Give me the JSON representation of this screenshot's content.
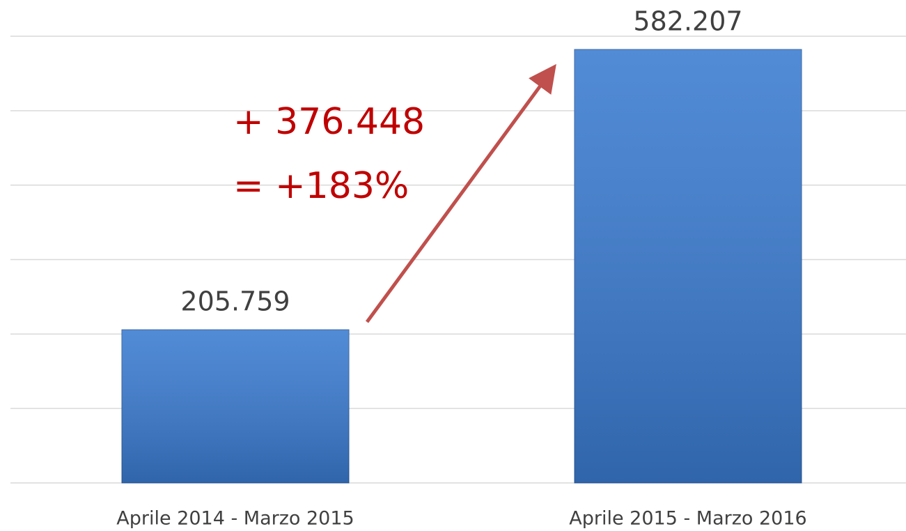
{
  "chart_data": {
    "type": "bar",
    "categories": [
      "Aprile 2014 - Marzo 2015",
      "Aprile 2015 - Marzo 2016"
    ],
    "values": [
      205759,
      582207
    ],
    "value_labels": [
      "205.759",
      "582.207"
    ],
    "color": "#3a7bd0",
    "ylim": [
      0,
      600000
    ],
    "yticks": [
      0,
      100000,
      200000,
      300000,
      400000,
      500000,
      600000
    ],
    "grid": true,
    "annotations": [
      "+ 376.448",
      "= +183%"
    ]
  }
}
